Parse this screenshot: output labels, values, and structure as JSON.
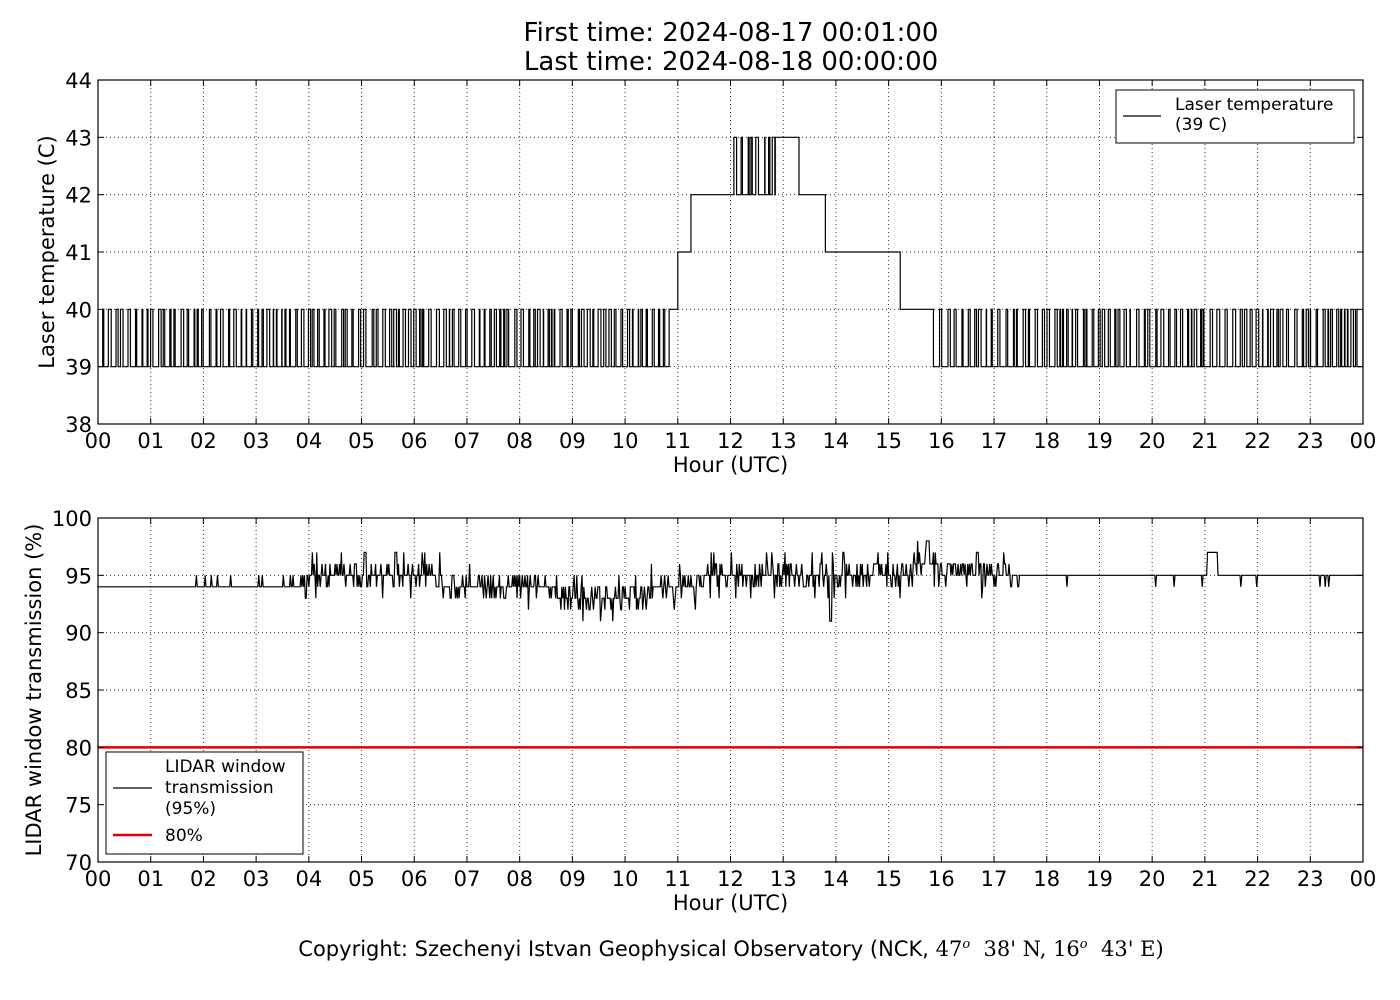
{
  "header": {
    "title_line1": "First time: 2024-08-17 00:01:00",
    "title_line2": "Last time: 2024-08-18 00:00:00"
  },
  "footer": {
    "copyright_prefix": "Copyright: Szechenyi Istvan Geophysical Observatory (NCK, ",
    "lat_deg": "47",
    "lat_min": "38' N, ",
    "lon_deg": "16",
    "lon_min": "43' E)",
    "degree_mark": "o"
  },
  "chart_data": [
    {
      "type": "line",
      "xlabel": "Hour (UTC)",
      "ylabel": "Laser temperature (C)",
      "xlim": [
        0,
        24
      ],
      "ylim": [
        38,
        44
      ],
      "x_ticks": [
        0,
        1,
        2,
        3,
        4,
        5,
        6,
        7,
        8,
        9,
        10,
        11,
        12,
        13,
        14,
        15,
        16,
        17,
        18,
        19,
        20,
        21,
        22,
        23,
        24
      ],
      "x_tick_labels": [
        "00",
        "01",
        "02",
        "03",
        "04",
        "05",
        "06",
        "07",
        "08",
        "09",
        "10",
        "11",
        "12",
        "13",
        "14",
        "15",
        "16",
        "17",
        "18",
        "19",
        "20",
        "21",
        "22",
        "23",
        "00"
      ],
      "y_ticks": [
        38,
        39,
        40,
        41,
        42,
        43,
        44
      ],
      "grid": true,
      "legend": {
        "position": "top-right",
        "entries": [
          "Laser temperature\n(39 C)"
        ]
      },
      "series": [
        {
          "name": "Laser temperature (39 C)",
          "color": "#000000",
          "segments": [
            {
              "x_from": 0.0,
              "x_to": 10.85,
              "pattern": "toggle",
              "values": [
                39,
                40
              ]
            },
            {
              "x_from": 10.85,
              "x_to": 11.0,
              "value": 40
            },
            {
              "x_from": 11.0,
              "x_to": 11.25,
              "value": 41
            },
            {
              "x_from": 11.25,
              "x_to": 11.95,
              "value": 42
            },
            {
              "x_from": 11.95,
              "x_to": 12.85,
              "pattern": "toggle",
              "values": [
                42,
                43
              ]
            },
            {
              "x_from": 12.85,
              "x_to": 13.3,
              "value": 43
            },
            {
              "x_from": 13.3,
              "x_to": 13.8,
              "value": 42
            },
            {
              "x_from": 13.8,
              "x_to": 15.22,
              "value": 41
            },
            {
              "x_from": 15.22,
              "x_to": 15.85,
              "value": 40
            },
            {
              "x_from": 15.85,
              "x_to": 24.0,
              "pattern": "toggle",
              "values": [
                39,
                40
              ]
            }
          ]
        }
      ]
    },
    {
      "type": "line",
      "xlabel": "Hour (UTC)",
      "ylabel": "LIDAR window transmission (%)",
      "xlim": [
        0,
        24
      ],
      "ylim": [
        70,
        100
      ],
      "x_ticks": [
        0,
        1,
        2,
        3,
        4,
        5,
        6,
        7,
        8,
        9,
        10,
        11,
        12,
        13,
        14,
        15,
        16,
        17,
        18,
        19,
        20,
        21,
        22,
        23,
        24
      ],
      "x_tick_labels": [
        "00",
        "01",
        "02",
        "03",
        "04",
        "05",
        "06",
        "07",
        "08",
        "09",
        "10",
        "11",
        "12",
        "13",
        "14",
        "15",
        "16",
        "17",
        "18",
        "19",
        "20",
        "21",
        "22",
        "23",
        "00"
      ],
      "y_ticks": [
        70,
        75,
        80,
        85,
        90,
        95,
        100
      ],
      "grid": true,
      "legend": {
        "position": "bottom-left",
        "entries": [
          "LIDAR window\ntransmission\n(95%)",
          "80%"
        ]
      },
      "series": [
        {
          "name": "LIDAR window transmission (95%)",
          "color": "#000000",
          "baseline_profile": [
            {
              "x": 0.0,
              "value": 94
            },
            {
              "x": 1.9,
              "value": 94
            },
            {
              "x": 4.0,
              "value": 94.5
            },
            {
              "x": 6.5,
              "value": 94.5
            },
            {
              "x": 8.5,
              "value": 93.5
            },
            {
              "x": 9.2,
              "value": 92.5
            },
            {
              "x": 10.5,
              "value": 93.5
            },
            {
              "x": 11.5,
              "value": 94.5
            },
            {
              "x": 15.0,
              "value": 94.5
            },
            {
              "x": 15.7,
              "value": 96
            },
            {
              "x": 16.2,
              "value": 95
            },
            {
              "x": 18.0,
              "value": 95
            },
            {
              "x": 24.0,
              "value": 95
            }
          ],
          "features": [
            {
              "x": 5.65,
              "value": 97
            },
            {
              "x": 13.9,
              "value": 91
            },
            {
              "x": 15.75,
              "value": 98
            },
            {
              "x": 21.2,
              "value": 98
            }
          ]
        },
        {
          "name": "80%",
          "color": "#e00000",
          "constant": 80
        }
      ]
    }
  ]
}
